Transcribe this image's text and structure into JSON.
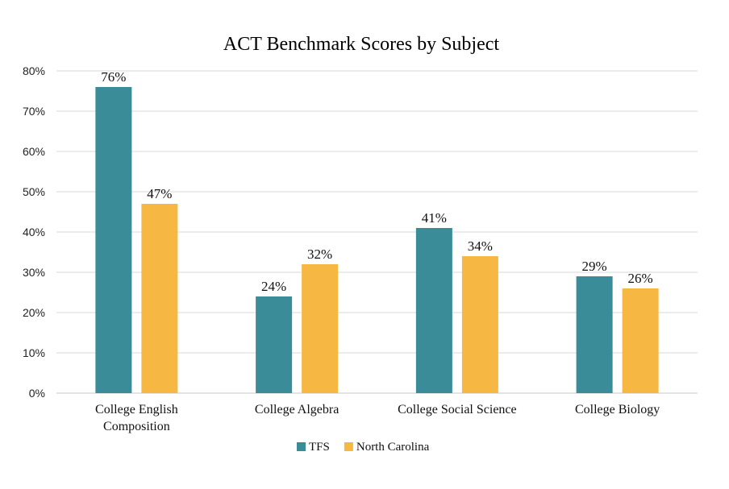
{
  "chart_data": {
    "type": "bar",
    "title": "ACT Benchmark Scores by Subject",
    "categories": [
      [
        "College English",
        "Composition"
      ],
      [
        "College Algebra"
      ],
      [
        "College Social Science"
      ],
      [
        "College Biology"
      ]
    ],
    "series": [
      {
        "name": "TFS",
        "values": [
          76,
          24,
          41,
          29
        ],
        "color": "#3a8c99"
      },
      {
        "name": "North Carolina",
        "values": [
          47,
          32,
          34,
          26
        ],
        "color": "#f6b843"
      }
    ],
    "data_labels": [
      [
        "76%",
        "24%",
        "41%",
        "29%"
      ],
      [
        "47%",
        "32%",
        "34%",
        "26%"
      ]
    ],
    "ylim": [
      0,
      80
    ],
    "yticks": [
      0,
      10,
      20,
      30,
      40,
      50,
      60,
      70,
      80
    ],
    "ytick_labels": [
      "0%",
      "10%",
      "20%",
      "30%",
      "40%",
      "50%",
      "60%",
      "70%",
      "80%"
    ],
    "grid": true,
    "legend_position": "bottom"
  }
}
